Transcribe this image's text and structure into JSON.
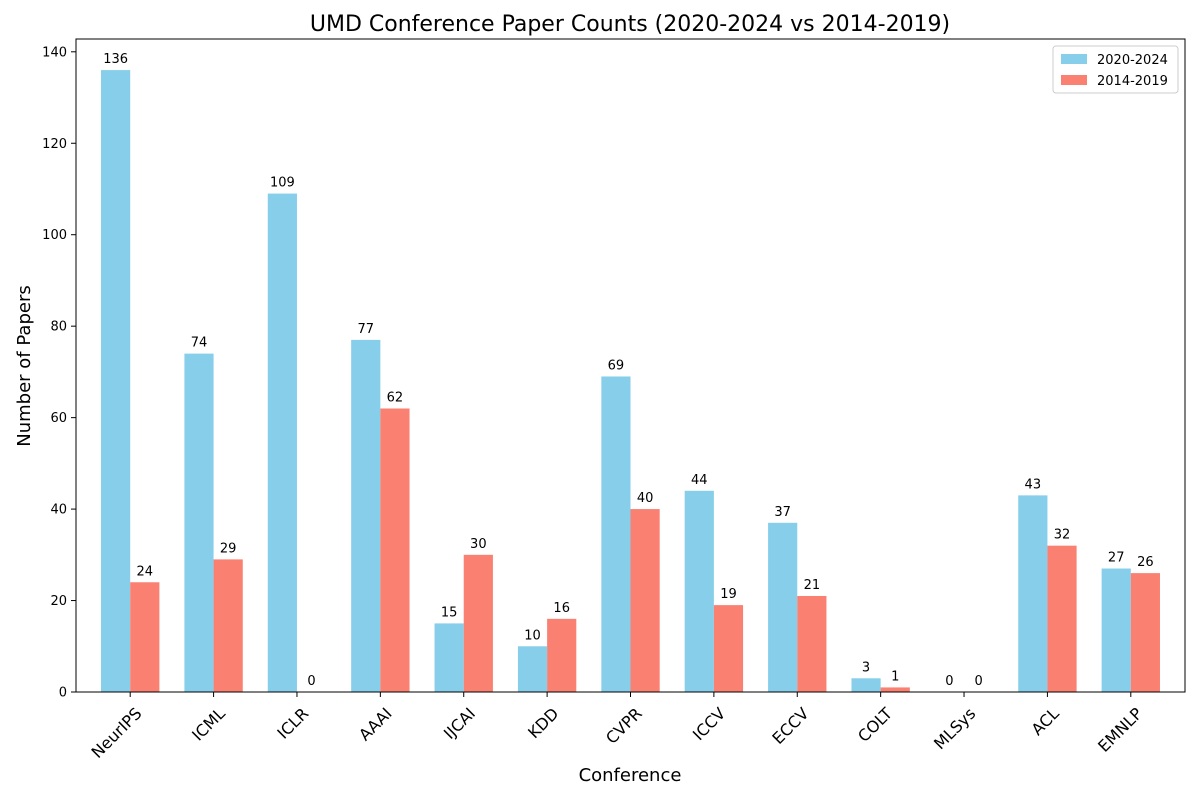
{
  "chart_data": {
    "type": "bar",
    "title": "UMD Conference Paper Counts (2020-2024 vs 2014-2019)",
    "xlabel": "Conference",
    "ylabel": "Number of Papers",
    "categories": [
      "NeurIPS",
      "ICML",
      "ICLR",
      "AAAI",
      "IJCAI",
      "KDD",
      "CVPR",
      "ICCV",
      "ECCV",
      "COLT",
      "MLSys",
      "ACL",
      "EMNLP"
    ],
    "series": [
      {
        "name": "2020-2024",
        "color": "#87CEEB",
        "values": [
          136,
          74,
          109,
          77,
          15,
          10,
          69,
          44,
          37,
          3,
          0,
          43,
          27
        ]
      },
      {
        "name": "2014-2019",
        "color": "#FA8072",
        "values": [
          24,
          29,
          0,
          62,
          30,
          16,
          40,
          19,
          21,
          1,
          0,
          32,
          26
        ]
      }
    ],
    "ylim": [
      0,
      142.8
    ],
    "yticks": [
      0,
      20,
      40,
      60,
      80,
      100,
      120,
      140
    ],
    "grid": false,
    "legend_position": "top-right",
    "data_labels": true
  }
}
